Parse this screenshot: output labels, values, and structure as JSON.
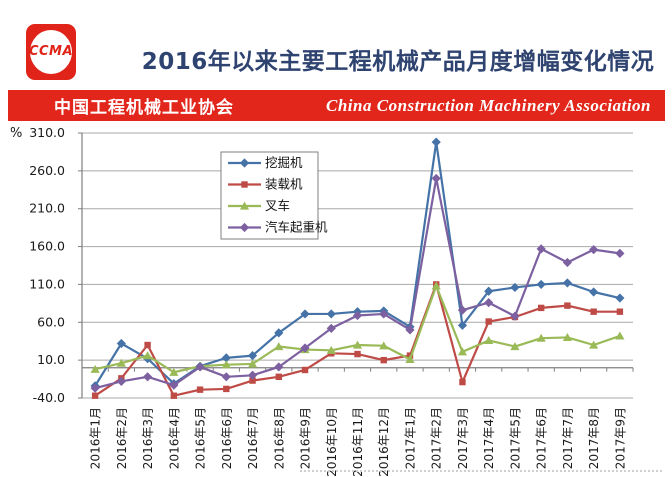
{
  "header": {
    "logo_text": "CCMA",
    "title": "2016年以来主要工程机械产品月度增幅变化情况",
    "banner": {
      "cn": "中国工程机械工业协会",
      "en": "China Construction Machinery Association"
    }
  },
  "chart_data": {
    "type": "line",
    "title": "2016年以来主要工程机械产品月度增幅变化情况",
    "ylabel": "%",
    "unit_label": "%",
    "ylim": [
      -40,
      310
    ],
    "ytick_step": 50,
    "yticks": [
      310,
      260,
      210,
      160,
      110,
      60,
      10,
      -40
    ],
    "grid": true,
    "legend_position": "upper-left-inside",
    "x_label_rotation": -90,
    "categories": [
      "2016年1月",
      "2016年2月",
      "2016年3月",
      "2016年4月",
      "2016年5月",
      "2016年6月",
      "2016年7月",
      "2016年8月",
      "2016年9月",
      "2016年10月",
      "2016年11月",
      "2016年12月",
      "2017年1月",
      "2017年2月",
      "2017年3月",
      "2017年4月",
      "2017年5月",
      "2017年6月",
      "2017年7月",
      "2017年8月",
      "2017年9月"
    ],
    "series": [
      {
        "key": "excavator",
        "name": "挖掘机",
        "color": "#4573a7",
        "marker": "diamond",
        "values": [
          -24,
          32,
          12,
          -21,
          2,
          13,
          16,
          46,
          71,
          71,
          74,
          75,
          54,
          298,
          56,
          101,
          106,
          110,
          112,
          100,
          92
        ]
      },
      {
        "key": "loader",
        "name": "装载机",
        "color": "#bf4b47",
        "marker": "square",
        "values": [
          -37,
          -14,
          30,
          -37,
          -29,
          -28,
          -17,
          -12,
          -3,
          19,
          18,
          10,
          16,
          110,
          -19,
          61,
          67,
          79,
          82,
          74,
          74
        ]
      },
      {
        "key": "forklift",
        "name": "叉车",
        "color": "#9aba58",
        "marker": "triangle",
        "values": [
          -2,
          6,
          16,
          -6,
          2,
          4,
          5,
          28,
          24,
          23,
          30,
          29,
          11,
          108,
          21,
          36,
          28,
          39,
          40,
          30,
          42
        ]
      },
      {
        "key": "truck-crane",
        "name": "汽车起重机",
        "color": "#7c60a0",
        "marker": "diamond",
        "values": [
          -27,
          -18,
          -12,
          -23,
          1,
          -12,
          -10,
          1,
          26,
          52,
          69,
          71,
          50,
          250,
          76,
          86,
          68,
          157,
          139,
          156,
          151
        ]
      }
    ],
    "colors": {
      "grid": "#a8a8a8",
      "axis": "#7f7f7f",
      "tick_text": "#1a1a1a",
      "banner_red": "#e2261c",
      "title_navy": "#2f4370"
    }
  }
}
